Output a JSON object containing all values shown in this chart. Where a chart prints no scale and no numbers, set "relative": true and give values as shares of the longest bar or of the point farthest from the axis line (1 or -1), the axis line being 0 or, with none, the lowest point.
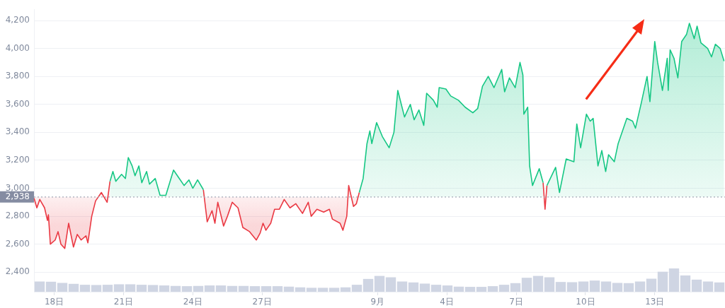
{
  "chart_data": [
    {
      "type": "line",
      "grid": "y",
      "legend": false,
      "xlim": [
        "--08-17T03:00",
        "--09-16T01:00"
      ],
      "xticks": [
        {
          "value": "--08-18",
          "label": "18日"
        },
        {
          "value": "--08-21",
          "label": "21日"
        },
        {
          "value": "--08-24",
          "label": "24日"
        },
        {
          "value": "--08-27",
          "label": "27日"
        },
        {
          "value": "--09-01",
          "label": "9月"
        },
        {
          "value": "--09-04",
          "label": "4日"
        },
        {
          "value": "--09-07",
          "label": "7日"
        },
        {
          "value": "--09-10",
          "label": "10日"
        },
        {
          "value": "--09-13",
          "label": "13日"
        }
      ],
      "ylim": [
        2260,
        4280
      ],
      "yticks": [
        {
          "value": 2400,
          "label": "2,400"
        },
        {
          "value": 2600,
          "label": "2,600"
        },
        {
          "value": 2800,
          "label": "2,800"
        },
        {
          "value": 3000,
          "label": "3,000"
        },
        {
          "value": 3200,
          "label": "3,200"
        },
        {
          "value": 3400,
          "label": "3,400"
        },
        {
          "value": 3600,
          "label": "3,600"
        },
        {
          "value": 3800,
          "label": "3,800"
        },
        {
          "value": 4000,
          "label": "4,000"
        },
        {
          "value": 4200,
          "label": "4,200"
        }
      ],
      "ref_lines": [
        {
          "axis": "y",
          "value": 2938,
          "label": "2,938",
          "color": "#a3a9b6",
          "line_style": "dotted"
        }
      ],
      "x": [
        "--08-17T03:00",
        "--08-17T06:00",
        "--08-17T09:00",
        "--08-17T14:00",
        "--08-17T17:00",
        "--08-17T18:00",
        "--08-17T20:00",
        "--08-18T01:00",
        "--08-18T04:00",
        "--08-18T07:00",
        "--08-18T11:00",
        "--08-18T15:00",
        "--08-18T20:00",
        "--08-19T00:00",
        "--08-19T04:00",
        "--08-19T09:00",
        "--08-19T11:00",
        "--08-19T15:00",
        "--08-19T19:00",
        "--08-20T01:00",
        "--08-20T07:00",
        "--08-20T10:00",
        "--08-20T13:00",
        "--08-20T16:00",
        "--08-20T22:00",
        "--08-21T02:00",
        "--08-21T05:00",
        "--08-21T09:00",
        "--08-21T12:00",
        "--08-21T16:00",
        "--08-21T19:00",
        "--08-22T00:00",
        "--08-22T03:00",
        "--08-22T09:00",
        "--08-22T14:00",
        "--08-22T20:00",
        "--08-23T04:00",
        "--08-23T10:00",
        "--08-23T15:00",
        "--08-23T20:00",
        "--08-24T00:00",
        "--08-24T05:00",
        "--08-24T11:00",
        "--08-24T15:00",
        "--08-24T20:00",
        "--08-24T23:00",
        "--08-25T02:00",
        "--08-25T08:00",
        "--08-25T12:00",
        "--08-25T17:00",
        "--08-25T23:00",
        "--08-26T04:00",
        "--08-26T11:00",
        "--08-26T18:00",
        "--08-26T22:00",
        "--08-27T01:00",
        "--08-27T04:00",
        "--08-27T09:00",
        "--08-27T13:00",
        "--08-27T18:00",
        "--08-27T23:00",
        "--08-28T05:00",
        "--08-28T11:00",
        "--08-28T18:00",
        "--08-29T00:00",
        "--08-29T03:00",
        "--08-29T09:00",
        "--08-29T16:00",
        "--08-29T22:00",
        "--08-30T01:00",
        "--08-30T09:00",
        "--08-30T12:00",
        "--08-30T16:00",
        "--08-30T18:00",
        "--08-30T23:00",
        "--08-31T02:00",
        "--08-31T05:00",
        "--08-31T09:00",
        "--08-31T13:00",
        "--08-31T16:00",
        "--08-31T18:00",
        "--08-31T23:00",
        "--09-01T05:00",
        "--09-01T12:00",
        "--09-01T17:00",
        "--09-01T21:00",
        "--09-02T04:00",
        "--09-02T10:00",
        "--09-02T14:00",
        "--09-02T19:00",
        "--09-03T00:00",
        "--09-03T03:00",
        "--09-03T10:00",
        "--09-03T14:00",
        "--09-03T16:00",
        "--09-03T23:00",
        "--09-04T04:00",
        "--09-04T12:00",
        "--09-04T19:00",
        "--09-05T03:00",
        "--09-05T08:00",
        "--09-05T13:00",
        "--09-05T19:00",
        "--09-06T01:00",
        "--09-06T09:00",
        "--09-06T12:00",
        "--09-06T17:00",
        "--09-06T23:00",
        "--09-07T04:00",
        "--09-07T07:00",
        "--09-07T08:00",
        "--09-07T12:00",
        "--09-07T14:00",
        "--09-07T17:00",
        "--09-08T00:00",
        "--09-08T04:00",
        "--09-08T06:00",
        "--09-08T08:00",
        "--09-08T17:00",
        "--09-08T21:00",
        "--09-09T04:00",
        "--09-09T12:00",
        "--09-09T15:00",
        "--09-09T19:00",
        "--09-10T01:00",
        "--09-10T05:00",
        "--09-10T08:00",
        "--09-10T13:00",
        "--09-10T17:00",
        "--09-10T21:00",
        "--09-11T00:00",
        "--09-11T06:00",
        "--09-11T10:00",
        "--09-11T19:00",
        "--09-12T01:00",
        "--09-12T04:00",
        "--09-12T10:00",
        "--09-12T16:00",
        "--09-12T19:00",
        "--09-13T00:00",
        "--09-13T03:00",
        "--09-13T08:00",
        "--09-13T13:00",
        "--09-13T14:00",
        "--09-13T16:00",
        "--09-13T20:00",
        "--09-14T00:00",
        "--09-14T04:00",
        "--09-14T09:00",
        "--09-14T12:00",
        "--09-14T17:00",
        "--09-14T20:00",
        "--09-15T00:00",
        "--09-15T07:00",
        "--09-15T11:00",
        "--09-15T15:00",
        "--09-15T20:00",
        "--09-16T00:00"
      ],
      "series": [
        {
          "type": "area",
          "color": "#16c784",
          "values": [
            null,
            null,
            null,
            null,
            null,
            null,
            null,
            null,
            null,
            null,
            null,
            null,
            null,
            null,
            null,
            null,
            null,
            null,
            null,
            null,
            null,
            3050,
            3120,
            3050,
            3100,
            3070,
            3220,
            3160,
            3090,
            3160,
            3040,
            3120,
            3030,
            3070,
            2950,
            2950,
            3130,
            3070,
            3020,
            3060,
            3000,
            3060,
            2990,
            null,
            null,
            null,
            null,
            null,
            null,
            null,
            null,
            null,
            null,
            null,
            null,
            null,
            null,
            null,
            null,
            null,
            null,
            null,
            null,
            null,
            null,
            null,
            null,
            null,
            null,
            null,
            null,
            null,
            null,
            null,
            null,
            null,
            2970,
            3070,
            3320,
            3410,
            3320,
            3470,
            3370,
            3290,
            3400,
            3700,
            3510,
            3600,
            3490,
            3560,
            3450,
            3680,
            3630,
            3580,
            3720,
            3710,
            3660,
            3630,
            3580,
            3540,
            3570,
            3730,
            3800,
            3720,
            3850,
            3690,
            3790,
            3720,
            3900,
            3810,
            3530,
            3580,
            3160,
            3020,
            3140,
            3040,
            null,
            3020,
            3150,
            2970,
            3210,
            3190,
            3460,
            3290,
            3530,
            3480,
            3500,
            3160,
            3270,
            3120,
            3240,
            3190,
            3320,
            3500,
            3480,
            3430,
            3610,
            3800,
            3620,
            4050,
            3900,
            3700,
            3930,
            3700,
            3990,
            3930,
            3790,
            4050,
            4100,
            4180,
            4070,
            4160,
            4040,
            4000,
            3940,
            4030,
            4000,
            3910
          ]
        },
        {
          "type": "area",
          "color": "#ea3943",
          "values": [
            2930,
            2860,
            2920,
            2860,
            2770,
            2810,
            2600,
            2630,
            2690,
            2600,
            2570,
            2750,
            2580,
            2670,
            2630,
            2660,
            2610,
            2800,
            2910,
            2970,
            2900,
            3050,
            null,
            null,
            null,
            null,
            null,
            null,
            null,
            null,
            null,
            null,
            null,
            null,
            null,
            null,
            null,
            null,
            null,
            null,
            null,
            null,
            2990,
            2760,
            2840,
            2750,
            2900,
            2730,
            2800,
            2900,
            2860,
            2720,
            2690,
            2630,
            2680,
            2750,
            2700,
            2750,
            2850,
            2850,
            2920,
            2860,
            2890,
            2820,
            2900,
            2800,
            2850,
            2830,
            2850,
            2780,
            2750,
            2700,
            2800,
            3020,
            2870,
            2890,
            2970,
            null,
            null,
            null,
            null,
            null,
            null,
            null,
            null,
            null,
            null,
            null,
            null,
            null,
            null,
            null,
            null,
            null,
            null,
            null,
            null,
            null,
            null,
            null,
            null,
            null,
            null,
            null,
            null,
            null,
            null,
            null,
            null,
            null,
            null,
            null,
            null,
            null,
            null,
            null,
            null,
            null,
            null,
            null,
            null,
            null,
            null,
            null,
            null,
            null,
            null,
            null,
            null,
            null,
            null,
            null,
            null,
            null,
            null,
            null,
            null,
            null,
            null,
            null,
            null,
            null,
            null,
            null,
            null,
            null,
            null,
            null,
            null,
            null,
            null,
            null,
            null,
            null,
            null,
            null,
            null,
            null
          ]
        },
        {
          "type": "line",
          "color": "#ea3943",
          "x": [
            "--09-08T04:00",
            "--09-08T06:00",
            "--09-08T08:00"
          ],
          "values": [
            3040,
            2850,
            3020
          ]
        }
      ]
    },
    {
      "type": "bar",
      "relative": true,
      "color": "#cfd5e3",
      "categories": [
        null,
        null,
        null,
        null,
        null,
        null,
        null,
        null,
        null,
        null,
        null,
        null,
        null,
        null,
        null,
        null,
        null,
        null,
        null,
        null,
        null,
        null,
        null,
        null,
        null,
        null,
        null,
        null,
        null,
        null,
        null,
        null,
        null,
        null,
        null,
        null,
        null,
        null,
        null,
        null,
        null,
        null,
        null,
        null,
        null,
        null,
        null,
        null,
        null,
        null,
        null,
        null,
        null,
        null,
        null,
        null,
        null,
        null,
        null,
        null,
        null
      ],
      "values": [
        0.44,
        0.43,
        0.38,
        0.34,
        0.3,
        0.29,
        0.3,
        0.32,
        0.32,
        0.3,
        0.29,
        0.27,
        0.25,
        0.24,
        0.25,
        0.27,
        0.27,
        0.25,
        0.25,
        0.24,
        0.24,
        0.24,
        0.22,
        0.19,
        0.17,
        0.17,
        0.17,
        0.19,
        0.3,
        0.55,
        0.68,
        0.62,
        0.44,
        0.4,
        0.35,
        0.3,
        0.27,
        0.22,
        0.21,
        0.21,
        0.24,
        0.3,
        0.37,
        0.6,
        0.68,
        0.62,
        0.42,
        0.41,
        0.44,
        0.48,
        0.44,
        0.38,
        0.37,
        0.44,
        0.56,
        0.86,
        1,
        0.7,
        0.52,
        0.44,
        0.4
      ]
    }
  ]
}
